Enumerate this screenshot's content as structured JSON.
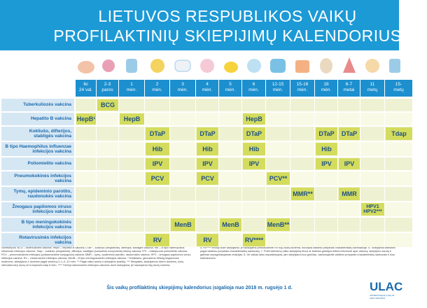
{
  "header": {
    "title": [
      "LIETUVOS RESPUBLIKOS VAIKŲ",
      "PROFILAKTINIŲ SKIEPIJIMŲ KALENDORIUS"
    ]
  },
  "ages": [
    [
      "Iki",
      "24 val."
    ],
    [
      "2-3",
      "paros"
    ],
    [
      "1",
      "mėn."
    ],
    [
      "2",
      "mėn."
    ],
    [
      "3",
      "mėn."
    ],
    [
      "4",
      "mėn."
    ],
    [
      "5",
      "mėn."
    ],
    [
      "6",
      "mėn."
    ],
    [
      "12-15",
      "mėn."
    ],
    [
      "15-16",
      "mėn."
    ],
    [
      "18",
      "mėn."
    ],
    [
      "6-7",
      "metai"
    ],
    [
      "11",
      "metų"
    ],
    [
      "15-",
      "metų"
    ]
  ],
  "rows": [
    {
      "label": [
        "Tuberkuliozės vakcina"
      ],
      "cells": [
        null,
        "BCG",
        null,
        null,
        null,
        null,
        null,
        null,
        null,
        null,
        null,
        null,
        null,
        null
      ]
    },
    {
      "label": [
        "Hepatito B vakcina"
      ],
      "cells": [
        "HepB¹",
        null,
        "HepB",
        null,
        null,
        null,
        null,
        "HepB",
        null,
        null,
        null,
        null,
        null,
        null
      ]
    },
    {
      "label": [
        "Kokliušo, difterijos,",
        "stabligės vakcina"
      ],
      "cells": [
        null,
        null,
        null,
        "DTaP",
        null,
        "DTaP",
        null,
        "DTaP",
        null,
        null,
        "DTaP",
        "DTaP",
        null,
        "Tdap"
      ]
    },
    {
      "label": [
        "B tipo Haemophilus influenzae",
        "infekcijos vakcina"
      ],
      "cells": [
        null,
        null,
        null,
        "Hib",
        null,
        "Hib",
        null,
        "Hib",
        null,
        null,
        "Hib",
        null,
        null,
        null
      ]
    },
    {
      "label": [
        "Poliomielito vakcina"
      ],
      "cells": [
        null,
        null,
        null,
        "IPV",
        null,
        "IPV",
        null,
        "IPV",
        null,
        null,
        "IPV",
        "IPV",
        null,
        null
      ]
    },
    {
      "label": [
        "Pneumokokinės infekcijos",
        "vakcina"
      ],
      "cells": [
        null,
        null,
        null,
        "PCV",
        null,
        "PCV",
        null,
        null,
        "PCV**",
        null,
        null,
        null,
        null,
        null
      ]
    },
    {
      "label": [
        "Tymų, epideminio parotito,",
        "raudonukės vakcina"
      ],
      "cells": [
        null,
        null,
        null,
        null,
        null,
        null,
        null,
        null,
        null,
        "MMR**",
        null,
        "MMR",
        null,
        null
      ]
    },
    {
      "label": [
        "Žmogaus papilomos viruso",
        "infekcijos vakcina"
      ],
      "cells": [
        null,
        null,
        null,
        null,
        null,
        null,
        null,
        null,
        null,
        null,
        null,
        null,
        [
          "HPV1",
          "HPV2***"
        ],
        null
      ]
    },
    {
      "label": [
        "B tipo meningokokinės",
        "infekcijos vakcina"
      ],
      "cells": [
        null,
        null,
        null,
        null,
        "MenB",
        null,
        "MenB",
        null,
        "MenB**",
        null,
        null,
        null,
        null,
        null
      ]
    },
    {
      "label": [
        "Rotavirusinės infekcijos",
        "vakcina"
      ],
      "cells": [
        null,
        null,
        null,
        "RV",
        null,
        "RV",
        null,
        "RV****",
        null,
        null,
        null,
        null,
        null,
        null
      ]
    }
  ],
  "footnotes": {
    "left": "Santrumpos: BCG – tuberkuliozės vakcina; HepB – hepatito B vakcina; DTaP – kokliušo (neląstelinė), difterijos, stabligės vakcina; Hib – B tipo Haemophilus influenzae infekcijos vakcina; Tdap – kokliušo (neląstelinė), difterijos, stabligės (sumažintu komponentų kiekiu) vakcina; IPV – inaktyvuota poliomielito vakcina; PCV – pneumokokinės infekcijos (polisacharidinė konjuguota) vakcina; MMR – tymų, epideminio parotito, raudonukės vakcina; HPV – žmogaus papilomos viruso infekcijos vakcina; RV – rotavirusinės infekcijos vakcina; MenB – B tipo meningokokinės infekcijos vakcina. ¹ Kūdikiams, gimusiems HBsAg teigiamoms motinoms, skiepijama 4 dozėmis pagal schemą 0–1–2–12 mėn. ** Pagal vaiko amžių ir skiepijimo pradžią. *** Mergaitės, skiepijamos dviem dozėmis, kurių intervalas tarp dozių ne trumpesnis kaip 6 mėn. **** Trečioji rotavirusinės infekcijos vakcinos dozė skiepijama, jei naudojama trijų dozių schema.",
    "right": "5. RV**** trečioji dozė skiepijama, jei skiepijama penkiavalente RV trijų dozių schema, nurodyta vaistinio preparato charakteristikų santraukoje. 6. Skiepijimai atliekami pagal vaistinio preparato charakteristikų santrauką. 7. Prieš kiekvieną vaiko skiepijimą tėvus ar teisėtus globėjus būtina informuoti apie vakciną, skiepijimo naudą ir galimas nepageidaujamas reakcijas. 8. Jei vaikas laiku nepaskiepytas, jam skiepijama kuo greičiau, vadovaujantis vaistinio preparato charakteristikų santrauka ir šiuo kalendoriumi."
  },
  "footer": {
    "effective": "Šis vaikų profilaktinių skiepijimų kalendorius įsigalioja nuo 2018 m. rugsėjo 1 d.",
    "logo": "ULAC",
    "logo_caption": "UŽKREČIAMŲJŲ LIGŲ IR AIDS CENTRAS"
  }
}
